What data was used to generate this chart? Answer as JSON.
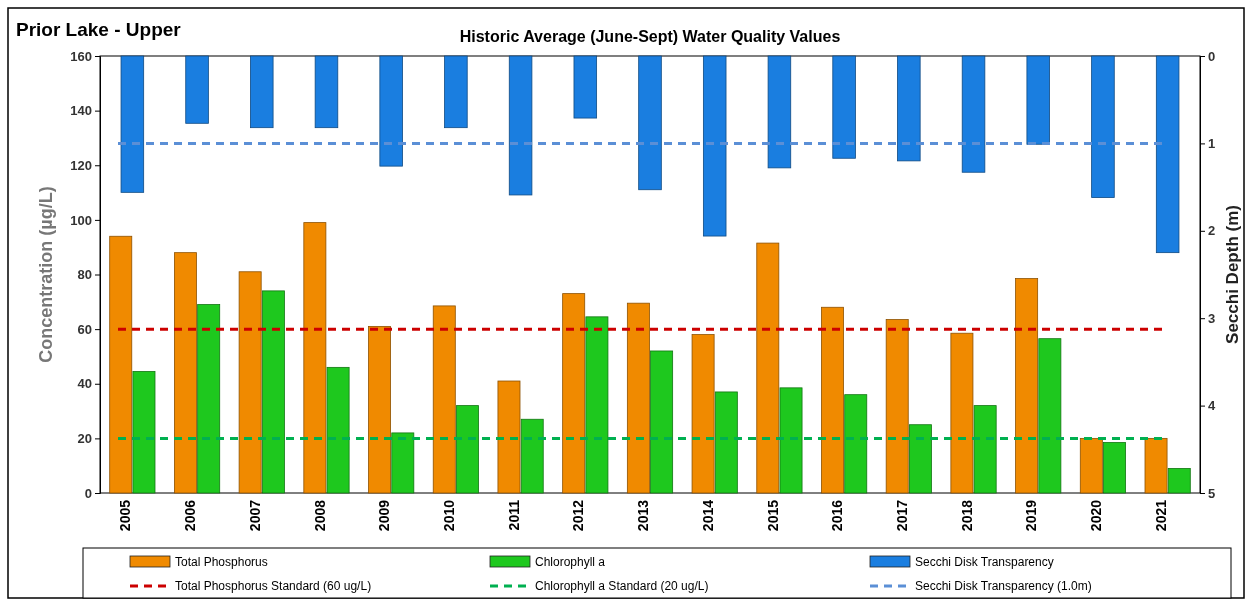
{
  "chart_data": {
    "type": "bar",
    "title": "Prior Lake - Upper",
    "subtitle": "Historic Average (June-Sept) Water Quality Values",
    "ylabel": "Concentration (µg/L)",
    "y2label": "Secchi Depth (m)",
    "categories": [
      "2005",
      "2006",
      "2007",
      "2008",
      "2009",
      "2010",
      "2011",
      "2012",
      "2013",
      "2014",
      "2015",
      "2016",
      "2017",
      "2018",
      "2019",
      "2020",
      "2021"
    ],
    "series": [
      {
        "name": "Total Phosphorus",
        "color": "#f08a00",
        "values": [
          94,
          88,
          81,
          99,
          61,
          68.5,
          41,
          73,
          69.5,
          58,
          91.5,
          68,
          63.5,
          58.5,
          78.5,
          20,
          20
        ]
      },
      {
        "name": "Chlorophyll a",
        "color": "#1ec81e",
        "values": [
          44.5,
          69,
          74,
          46,
          22,
          32,
          27,
          64.5,
          52,
          37,
          38.5,
          36,
          25,
          32,
          56.5,
          18.5,
          9
        ]
      },
      {
        "name": "Secchi Disk Transparency",
        "color": "#1a7ee0",
        "axis": "y2",
        "values": [
          1.56,
          0.77,
          0.82,
          0.82,
          1.26,
          0.82,
          1.59,
          0.71,
          1.53,
          2.06,
          1.28,
          1.17,
          1.2,
          1.33,
          1.01,
          1.62,
          2.25
        ]
      }
    ],
    "ylim": [
      0,
      160
    ],
    "yticks": [
      0,
      20,
      40,
      60,
      80,
      100,
      120,
      140,
      160
    ],
    "y2lim": [
      5,
      0
    ],
    "y2ticks": [
      0,
      1,
      2,
      3,
      4,
      5
    ],
    "ref_lines": [
      {
        "axis": "y",
        "value": 60,
        "label": "Total Phosphorus Standard (60 ug/L)",
        "color": "#cc0000",
        "line_style": "dashed"
      },
      {
        "axis": "y",
        "value": 20,
        "label": "Chlorophyll a Standard (20 ug/L)",
        "color": "#00b050",
        "line_style": "dashed"
      },
      {
        "axis": "y2",
        "value": 1,
        "label": "Secchi Disk Transparency (1.0m)",
        "color": "#5b8fd6",
        "line_style": "dashed"
      }
    ],
    "legend": "bottom",
    "grid": false
  }
}
